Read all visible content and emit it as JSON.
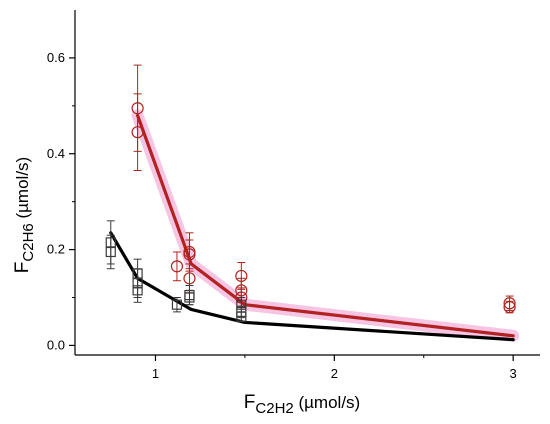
{
  "colors": {
    "axis": "#000000",
    "c2h6_series": "#b22222",
    "model_c2h6": "#b22222",
    "model_glow": "#f3b6dc",
    "ch_series": "#3a3a3a",
    "model_ch": "#000000"
  },
  "chart_data": {
    "type": "scatter",
    "title": "",
    "xlabel_main": "F",
    "xlabel_sub": "C2H2",
    "xlabel_unit": " (µmol/s)",
    "ylabel_main": "F",
    "ylabel_sub": "C2H6",
    "ylabel_unit": " (µmol/s)",
    "xlim": [
      0.55,
      3.15
    ],
    "ylim": [
      -0.02,
      0.7
    ],
    "x_ticks": [
      {
        "value": 1,
        "label": "1"
      },
      {
        "value": 2,
        "label": "2"
      },
      {
        "value": 3,
        "label": "3"
      }
    ],
    "y_ticks": [
      {
        "value": 0.0,
        "label": "0.0"
      },
      {
        "value": 0.2,
        "label": "0.2"
      },
      {
        "value": 0.4,
        "label": "0.4"
      },
      {
        "value": 0.6,
        "label": "0.6"
      }
    ],
    "series": [
      {
        "marker": "circle",
        "points": [
          {
            "x": 0.9,
            "y": 0.495,
            "err": 0.09
          },
          {
            "x": 0.9,
            "y": 0.445,
            "err": 0.08
          },
          {
            "x": 1.12,
            "y": 0.165,
            "err": 0.03
          },
          {
            "x": 1.19,
            "y": 0.195,
            "err": 0.04
          },
          {
            "x": 1.19,
            "y": 0.19,
            "err": 0.03
          },
          {
            "x": 1.19,
            "y": 0.14,
            "err": 0.03
          },
          {
            "x": 1.48,
            "y": 0.145,
            "err": 0.028
          },
          {
            "x": 1.48,
            "y": 0.115,
            "err": 0.025
          },
          {
            "x": 1.48,
            "y": 0.1,
            "err": 0.02
          },
          {
            "x": 2.98,
            "y": 0.088,
            "err": 0.015
          },
          {
            "x": 2.98,
            "y": 0.08,
            "err": 0.012
          }
        ]
      },
      {
        "marker": "square",
        "points": [
          {
            "x": 0.75,
            "y": 0.215,
            "err": 0.045
          },
          {
            "x": 0.75,
            "y": 0.195,
            "err": 0.035
          },
          {
            "x": 0.9,
            "y": 0.15,
            "err": 0.03
          },
          {
            "x": 0.9,
            "y": 0.13,
            "err": 0.03
          },
          {
            "x": 0.9,
            "y": 0.115,
            "err": 0.025
          },
          {
            "x": 1.12,
            "y": 0.085,
            "err": 0.015
          },
          {
            "x": 1.19,
            "y": 0.105,
            "err": 0.02
          },
          {
            "x": 1.19,
            "y": 0.1,
            "err": 0.015
          },
          {
            "x": 1.48,
            "y": 0.085,
            "err": 0.015
          },
          {
            "x": 1.48,
            "y": 0.07,
            "err": 0.012
          },
          {
            "x": 1.48,
            "y": 0.06,
            "err": 0.01
          }
        ]
      },
      {
        "type": "line",
        "x": [
          0.9,
          1.2,
          1.5,
          3.0
        ],
        "y": [
          0.48,
          0.17,
          0.085,
          0.02
        ]
      },
      {
        "type": "line",
        "x": [
          0.75,
          0.9,
          1.2,
          1.5,
          3.0
        ],
        "y": [
          0.235,
          0.14,
          0.075,
          0.048,
          0.012
        ]
      }
    ]
  }
}
